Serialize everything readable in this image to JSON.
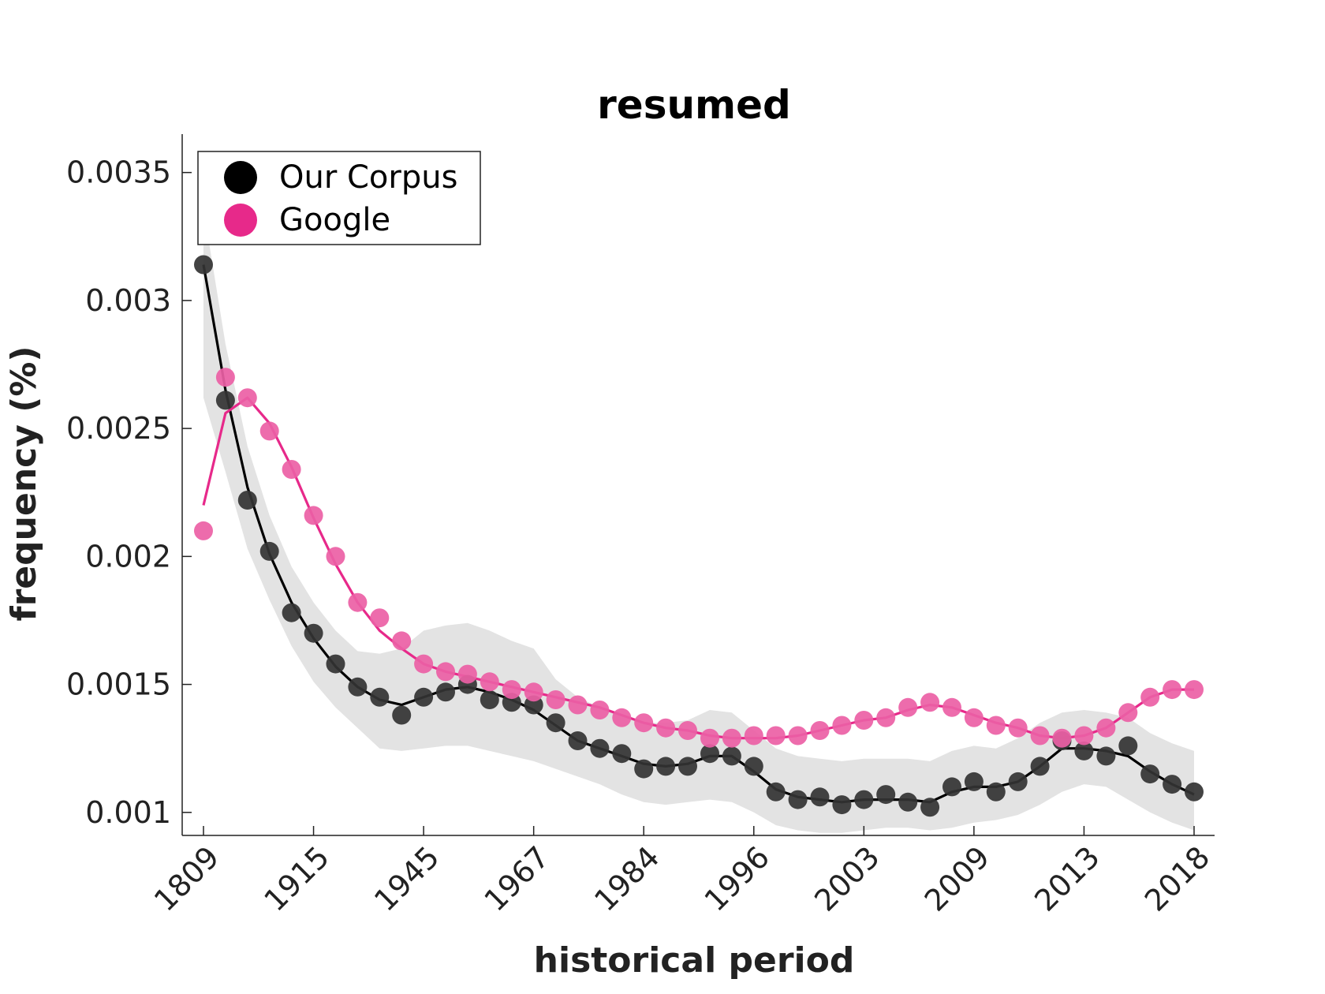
{
  "chart_data": {
    "type": "line",
    "title": "resumed",
    "xlabel": "historical period",
    "ylabel": "frequency (%)",
    "x_tick_labels": [
      "1809",
      "1915",
      "1945",
      "1967",
      "1984",
      "1996",
      "2003",
      "2009",
      "2013",
      "2018"
    ],
    "y_ticks": [
      0.001,
      0.0015,
      0.002,
      0.0025,
      0.003,
      0.0035
    ],
    "y_tick_labels": [
      "0.001",
      "0.0015",
      "0.002",
      "0.0025",
      "0.003",
      "0.0035"
    ],
    "ylim": [
      0.00091,
      0.00365
    ],
    "n_points": 46,
    "grid": false,
    "legend_position": "top-left",
    "series": [
      {
        "name": "Our Corpus",
        "color": "#000000",
        "marker_color": "#333333",
        "points": [
          0.00314,
          0.00261,
          0.00222,
          0.00202,
          0.00178,
          0.0017,
          0.00158,
          0.00149,
          0.00145,
          0.00138,
          0.00145,
          0.00147,
          0.0015,
          0.00144,
          0.00143,
          0.00142,
          0.00135,
          0.00128,
          0.00125,
          0.00123,
          0.00117,
          0.00118,
          0.00118,
          0.00123,
          0.00122,
          0.00118,
          0.00108,
          0.00105,
          0.00106,
          0.00103,
          0.00105,
          0.00107,
          0.00104,
          0.00102,
          0.0011,
          0.00112,
          0.00108,
          0.00112,
          0.00118,
          0.00128,
          0.00124,
          0.00122,
          0.00126,
          0.00115,
          0.00111,
          0.00108
        ],
        "line": [
          0.00314,
          0.00265,
          0.00227,
          0.00201,
          0.00182,
          0.00168,
          0.00157,
          0.00149,
          0.00144,
          0.00142,
          0.00145,
          0.00148,
          0.00149,
          0.00147,
          0.00144,
          0.0014,
          0.00134,
          0.00128,
          0.00125,
          0.00122,
          0.00119,
          0.00118,
          0.00119,
          0.00122,
          0.00122,
          0.00116,
          0.00109,
          0.00106,
          0.00105,
          0.00104,
          0.00105,
          0.00105,
          0.00105,
          0.00104,
          0.00108,
          0.0011,
          0.0011,
          0.00112,
          0.00118,
          0.00125,
          0.00125,
          0.00124,
          0.00122,
          0.00116,
          0.00111,
          0.00107
        ],
        "band_upper": [
          0.00336,
          0.00283,
          0.00243,
          0.00216,
          0.00196,
          0.00182,
          0.00171,
          0.00163,
          0.00162,
          0.00164,
          0.00171,
          0.00173,
          0.00174,
          0.00171,
          0.00167,
          0.00164,
          0.00152,
          0.00145,
          0.00141,
          0.00138,
          0.00135,
          0.00135,
          0.00136,
          0.0014,
          0.00139,
          0.00132,
          0.00125,
          0.00122,
          0.00121,
          0.0012,
          0.00121,
          0.00121,
          0.00121,
          0.0012,
          0.00124,
          0.00126,
          0.00125,
          0.00129,
          0.00135,
          0.00139,
          0.0014,
          0.00139,
          0.00137,
          0.00131,
          0.00127,
          0.00124
        ],
        "band_lower": [
          0.00262,
          0.00233,
          0.00203,
          0.00183,
          0.00165,
          0.00151,
          0.00141,
          0.00133,
          0.00125,
          0.00124,
          0.00125,
          0.00126,
          0.00126,
          0.00124,
          0.00122,
          0.0012,
          0.00117,
          0.00114,
          0.00111,
          0.00107,
          0.00104,
          0.00103,
          0.00104,
          0.00105,
          0.00104,
          0.001,
          0.00095,
          0.00093,
          0.00092,
          0.00092,
          0.00093,
          0.00094,
          0.00094,
          0.00093,
          0.00094,
          0.00096,
          0.00097,
          0.00099,
          0.00103,
          0.00108,
          0.00111,
          0.0011,
          0.00105,
          0.001,
          0.00096,
          0.00093
        ]
      },
      {
        "name": "Google",
        "color": "#e7298a",
        "marker_color": "#ec5fa5",
        "points": [
          0.0021,
          0.0027,
          0.00262,
          0.00249,
          0.00234,
          0.00216,
          0.002,
          0.00182,
          0.00176,
          0.00167,
          0.00158,
          0.00155,
          0.00154,
          0.00151,
          0.00148,
          0.00147,
          0.00144,
          0.00142,
          0.0014,
          0.00137,
          0.00135,
          0.00133,
          0.00132,
          0.00129,
          0.00129,
          0.0013,
          0.0013,
          0.0013,
          0.00132,
          0.00134,
          0.00136,
          0.00137,
          0.00141,
          0.00143,
          0.00141,
          0.00137,
          0.00134,
          0.00133,
          0.0013,
          0.00129,
          0.0013,
          0.00133,
          0.00139,
          0.00145,
          0.00148,
          0.00148
        ],
        "line": [
          0.0022,
          0.00256,
          0.00262,
          0.00252,
          0.00235,
          0.00215,
          0.00197,
          0.00182,
          0.00171,
          0.00164,
          0.00158,
          0.00155,
          0.00153,
          0.00151,
          0.00149,
          0.00147,
          0.00145,
          0.00143,
          0.00141,
          0.00138,
          0.00135,
          0.00133,
          0.00132,
          0.0013,
          0.00129,
          0.00129,
          0.00129,
          0.0013,
          0.00132,
          0.00134,
          0.00136,
          0.00137,
          0.0014,
          0.00142,
          0.00141,
          0.00138,
          0.00135,
          0.00133,
          0.0013,
          0.00129,
          0.0013,
          0.00133,
          0.00139,
          0.00145,
          0.00148,
          0.00148
        ]
      }
    ]
  }
}
